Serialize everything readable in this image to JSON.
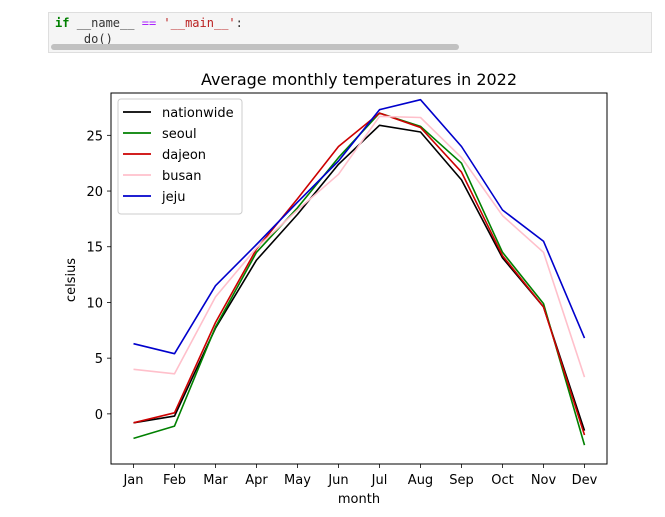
{
  "code_cell": {
    "line1": {
      "keyword": "if",
      "name": "__name__",
      "op": "==",
      "string": "'__main__'",
      "colon": ":"
    },
    "line2": "do()"
  },
  "chart_data": {
    "type": "line",
    "title": "Average monthly temperatures in 2022",
    "xlabel": "month",
    "ylabel": "celsius",
    "categories": [
      "Jan",
      "Feb",
      "Mar",
      "Apr",
      "May",
      "Jun",
      "Jul",
      "Aug",
      "Sep",
      "Oct",
      "Nov",
      "Dev"
    ],
    "ylim": [
      -4.5,
      28.8
    ],
    "yticks": [
      0,
      5,
      10,
      15,
      20,
      25
    ],
    "grid": false,
    "legend_position": "top-left",
    "series": [
      {
        "name": "nationwide",
        "color": "#000000",
        "values": [
          -0.8,
          -0.2,
          7.7,
          13.8,
          17.9,
          22.4,
          25.9,
          25.3,
          21.0,
          14.0,
          9.6,
          -1.5
        ]
      },
      {
        "name": "seoul",
        "color": "#008000",
        "values": [
          -2.2,
          -1.1,
          7.8,
          14.5,
          18.5,
          23.0,
          27.0,
          25.8,
          22.5,
          14.5,
          9.9,
          -2.8
        ]
      },
      {
        "name": "dajeon",
        "color": "#cc0000",
        "values": [
          -0.8,
          0.1,
          8.2,
          14.8,
          19.3,
          24.0,
          27.0,
          25.7,
          21.7,
          14.2,
          9.6,
          -1.9
        ]
      },
      {
        "name": "busan",
        "color": "#ffc0cb",
        "values": [
          4.0,
          3.6,
          10.5,
          14.9,
          18.3,
          21.5,
          26.7,
          26.6,
          23.0,
          17.8,
          14.5,
          3.3
        ]
      },
      {
        "name": "jeju",
        "color": "#0000cc",
        "values": [
          6.3,
          5.4,
          11.5,
          15.2,
          19.0,
          22.7,
          27.3,
          28.2,
          24.0,
          18.3,
          15.5,
          6.8
        ]
      }
    ]
  }
}
